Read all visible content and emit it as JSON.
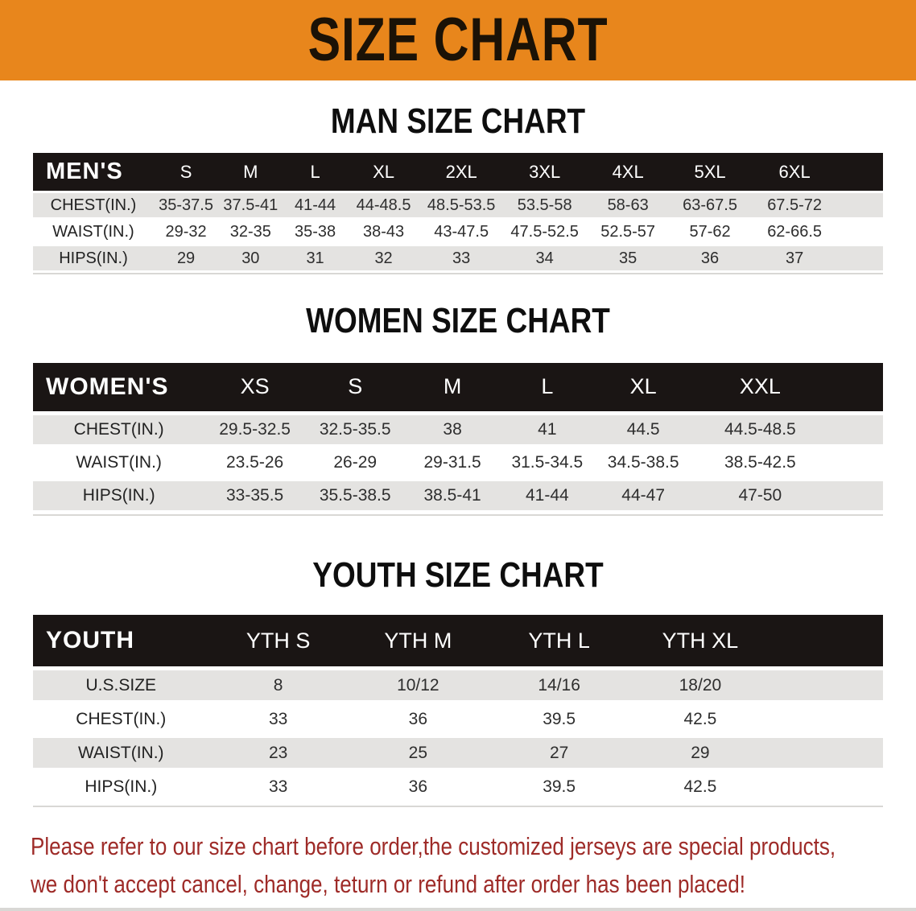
{
  "banner": {
    "title": "SIZE CHART"
  },
  "colors": {
    "banner_bg": "#E8861C",
    "table_header_bg": "#1a1514",
    "shaded_row_bg": "#e4e3e1",
    "disclaimer_text": "#9e2b28"
  },
  "sections": [
    {
      "heading": "MAN SIZE CHART",
      "table": {
        "header_label": "MEN'S",
        "columns": [
          "S",
          "M",
          "L",
          "XL",
          "2XL",
          "3XL",
          "4XL",
          "5XL",
          "6XL"
        ],
        "rows": [
          {
            "label": "CHEST(IN.)",
            "values": [
              "35-37.5",
              "37.5-41",
              "41-44",
              "44-48.5",
              "48.5-53.5",
              "53.5-58",
              "58-63",
              "63-67.5",
              "67.5-72"
            ]
          },
          {
            "label": "WAIST(IN.)",
            "values": [
              "29-32",
              "32-35",
              "35-38",
              "38-43",
              "43-47.5",
              "47.5-52.5",
              "52.5-57",
              "57-62",
              "62-66.5"
            ]
          },
          {
            "label": "HIPS(IN.)",
            "values": [
              "29",
              "30",
              "31",
              "32",
              "33",
              "34",
              "35",
              "36",
              "37"
            ]
          }
        ]
      }
    },
    {
      "heading": "WOMEN SIZE CHART",
      "table": {
        "header_label": "WOMEN'S",
        "columns": [
          "XS",
          "S",
          "M",
          "L",
          "XL",
          "XXL"
        ],
        "rows": [
          {
            "label": "CHEST(IN.)",
            "values": [
              "29.5-32.5",
              "32.5-35.5",
              "38",
              "41",
              "44.5",
              "44.5-48.5"
            ]
          },
          {
            "label": "WAIST(IN.)",
            "values": [
              "23.5-26",
              "26-29",
              "29-31.5",
              "31.5-34.5",
              "34.5-38.5",
              "38.5-42.5"
            ]
          },
          {
            "label": "HIPS(IN.)",
            "values": [
              "33-35.5",
              "35.5-38.5",
              "38.5-41",
              "41-44",
              "44-47",
              "47-50"
            ]
          }
        ]
      }
    },
    {
      "heading": "YOUTH SIZE CHART",
      "table": {
        "header_label": "YOUTH",
        "columns": [
          "YTH S",
          "YTH M",
          "YTH L",
          "YTH XL"
        ],
        "rows": [
          {
            "label": "U.S.SIZE",
            "values": [
              "8",
              "10/12",
              "14/16",
              "18/20"
            ]
          },
          {
            "label": "CHEST(IN.)",
            "values": [
              "33",
              "36",
              "39.5",
              "42.5"
            ]
          },
          {
            "label": "WAIST(IN.)",
            "values": [
              "23",
              "25",
              "27",
              "29"
            ]
          },
          {
            "label": "HIPS(IN.)",
            "values": [
              "33",
              "36",
              "39.5",
              "42.5"
            ]
          }
        ]
      }
    }
  ],
  "disclaimer": {
    "line1": "Please refer to our size chart before order,the customized jerseys are special products,",
    "line2": "we don't accept cancel, change, teturn or refund after order has been placed!"
  }
}
